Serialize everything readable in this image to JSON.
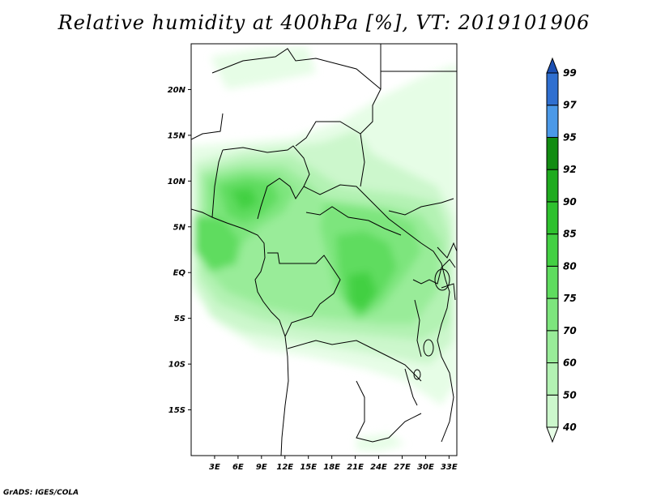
{
  "title": "Relative humidity at 400hPa [%], VT: 2019101906",
  "credit": "GrADS: IGES/COLA",
  "map": {
    "lat_ticks": [
      "20N",
      "15N",
      "10N",
      "5N",
      "EQ",
      "5S",
      "10S",
      "15S"
    ],
    "lat_values": [
      20,
      15,
      10,
      5,
      0,
      -5,
      -10,
      -15
    ],
    "lon_ticks": [
      "3E",
      "6E",
      "9E",
      "12E",
      "15E",
      "18E",
      "21E",
      "24E",
      "27E",
      "30E",
      "33E"
    ],
    "lon_values": [
      3,
      6,
      9,
      12,
      15,
      18,
      21,
      24,
      27,
      30,
      33
    ],
    "lon_range": [
      0,
      34
    ],
    "lat_range": [
      -20,
      25
    ]
  },
  "colorbar": {
    "levels": [
      "40",
      "50",
      "60",
      "70",
      "75",
      "80",
      "85",
      "90",
      "92",
      "95",
      "97",
      "99"
    ],
    "colors": [
      "#e6fde6",
      "#ccf7cc",
      "#b3f2b3",
      "#99ec99",
      "#7de57d",
      "#5fdc5f",
      "#43d043",
      "#2ec12e",
      "#1fab1f",
      "#128c12",
      "#4b99e8",
      "#2f6fd0",
      "#1b4fb3"
    ]
  },
  "colors": {
    "land_border": "#000000",
    "background": "#ffffff"
  }
}
